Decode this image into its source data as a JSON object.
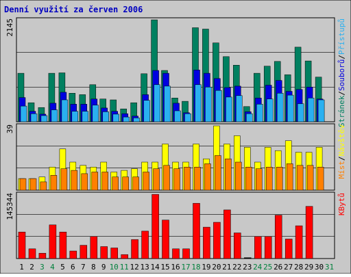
{
  "colors": {
    "background": "#c8c8c8",
    "title": "#0000c0",
    "pages_bar": "#008060",
    "files_bar": "#0000e0",
    "hits_bar": "#2ab0f0",
    "visits_bar": "#ffff00",
    "sites_bar": "#ff8000",
    "kbytes_bar": "#ff0000",
    "weekend_label": "#00803c",
    "weekday_label": "#000000"
  },
  "chart_data": {
    "type": "bar",
    "title": "Denní využití za červen 2006",
    "categories": [
      "1",
      "2",
      "3",
      "4",
      "5",
      "6",
      "7",
      "8",
      "9",
      "10",
      "11",
      "12",
      "13",
      "14",
      "15",
      "16",
      "17",
      "18",
      "19",
      "20",
      "21",
      "22",
      "23",
      "24",
      "25",
      "26",
      "27",
      "28",
      "29",
      "30",
      "31"
    ],
    "weekend_days": [
      "3",
      "4",
      "10",
      "11",
      "17",
      "18",
      "24",
      "25",
      "31"
    ],
    "panels": [
      {
        "name": "traffic",
        "ymax_label": "2145",
        "ymax": 2145,
        "legend": [
          "Stránek",
          "/",
          "Souborů",
          "/",
          "Přístupů"
        ],
        "legend_colors": [
          "pages_bar",
          "weekday_label",
          "files_bar",
          "weekday_label",
          "hits_bar"
        ],
        "series": [
          {
            "name": "Stránek",
            "color_key": "pages_bar",
            "values": [
              1020,
              400,
              300,
              1020,
              1030,
              600,
              570,
              780,
              480,
              460,
              270,
              400,
              1010,
              2145,
              1080,
              500,
              430,
              1980,
              1950,
              1660,
              1370,
              1190,
              320,
              1020,
              1170,
              1270,
              990,
              1570,
              1280,
              940,
              0
            ]
          },
          {
            "name": "Souborů",
            "color_key": "files_bar",
            "values": [
              510,
              220,
              160,
              390,
              620,
              370,
              370,
              480,
              290,
              220,
              170,
              120,
              570,
              1080,
              1020,
              390,
              190,
              1090,
              1020,
              910,
              720,
              750,
              210,
              500,
              770,
              870,
              640,
              680,
              730,
              480,
              0
            ]
          },
          {
            "name": "Přístupů",
            "color_key": "hits_bar",
            "values": [
              330,
              170,
              130,
              250,
              460,
              220,
              220,
              350,
              210,
              160,
              100,
              80,
              450,
              780,
              750,
              230,
              170,
              780,
              730,
              660,
              520,
              550,
              170,
              370,
              480,
              600,
              560,
              380,
              500,
              460,
              0
            ]
          }
        ]
      },
      {
        "name": "visits",
        "ymax_label": "39",
        "ymax": 39,
        "legend": [
          "Míst",
          "/",
          "Návštěv"
        ],
        "legend_colors": [
          "sites_bar",
          "weekday_label",
          "visits_bar"
        ],
        "series": [
          {
            "name": "Návštěv",
            "color_key": "visits_bar",
            "values": [
              7,
              7,
              8,
              14,
              25,
              17,
              15,
              14,
              17,
              11,
              12,
              13,
              17,
              17,
              28,
              17,
              17,
              28,
              19,
              39,
              28,
              33,
              26,
              17,
              26,
              24,
              30,
              23,
              23,
              26,
              0
            ]
          },
          {
            "name": "Míst",
            "color_key": "sites_bar",
            "values": [
              7,
              7,
              5,
              9,
              13,
              12,
              10,
              11,
              11,
              8,
              8,
              8,
              11,
              13,
              15,
              13,
              14,
              14,
              16,
              21,
              19,
              17,
              14,
              13,
              14,
              14,
              16,
              15,
              15,
              14,
              0
            ]
          }
        ]
      },
      {
        "name": "kbytes",
        "ymax_label": "145344",
        "ymax": 145344,
        "legend": [
          "KBytů"
        ],
        "legend_colors": [
          "kbytes_bar"
        ],
        "series": [
          {
            "name": "KBytů",
            "color_key": "kbytes_bar",
            "values": [
              60000,
              22000,
              12000,
              76000,
              60000,
              17000,
              30000,
              50000,
              27000,
              24000,
              9000,
              43000,
              62000,
              145000,
              87000,
              22000,
              22000,
              125000,
              71000,
              82000,
              110000,
              58000,
              2000,
              50000,
              50000,
              98000,
              44000,
              74000,
              118000,
              0,
              0
            ]
          }
        ]
      }
    ]
  }
}
